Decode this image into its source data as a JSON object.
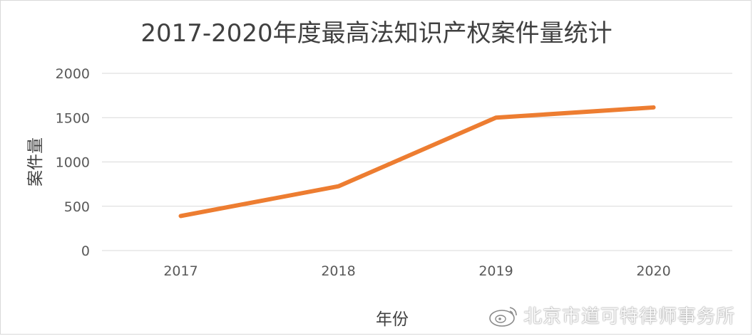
{
  "chart_data": {
    "type": "line",
    "title": "2017-2020年度最高法知识产权案件量统计",
    "xlabel": "年份",
    "ylabel": "案件量",
    "categories": [
      "2017",
      "2018",
      "2019",
      "2020"
    ],
    "series": [
      {
        "name": "案件量",
        "values": [
          390,
          725,
          1500,
          1615
        ],
        "color": "#ed7d31"
      }
    ],
    "ylim": [
      0,
      2000
    ],
    "yticks": [
      0,
      500,
      1000,
      1500,
      2000
    ],
    "grid": true,
    "legend": "none"
  },
  "watermark": {
    "icon": "weibo-logo",
    "text": "北京市道可特律师事务所"
  }
}
